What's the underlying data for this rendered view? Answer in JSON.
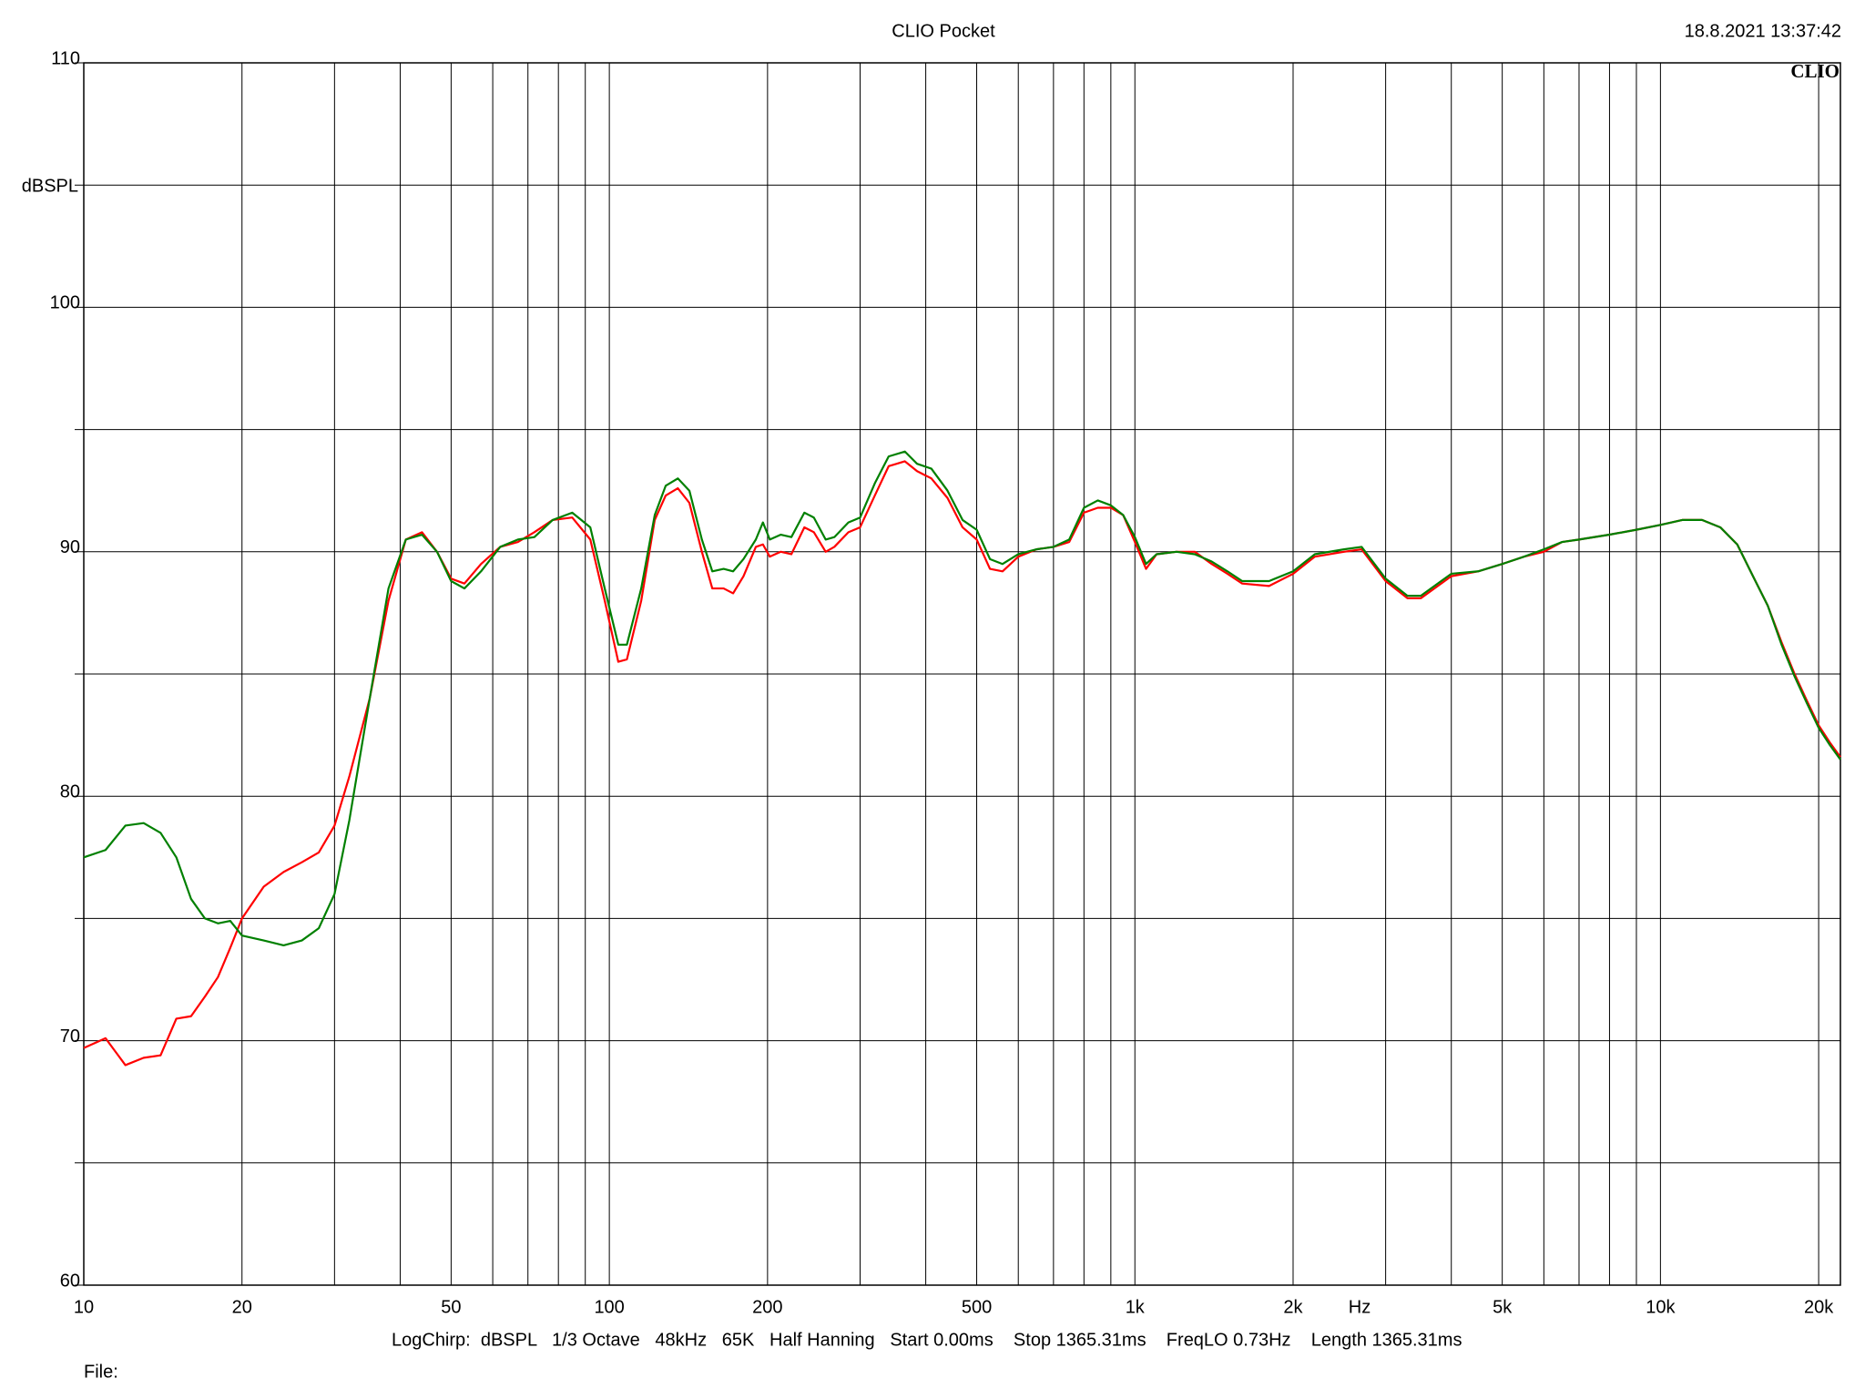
{
  "chart_data": {
    "type": "line",
    "title": "CLIO Pocket",
    "timestamp": "18.8.2021 13:37:42",
    "logo": "CLIO",
    "y_label": "dBSPL",
    "x_label": "Hz",
    "footer": "LogChirp:  dBSPL   1/3 Octave   48kHz   65K   Half Hanning   Start 0.00ms    Stop 1365.31ms    FreqLO 0.73Hz    Length 1365.31ms",
    "file_label": "File:",
    "xscale": "log",
    "grid": true,
    "xlim": [
      10,
      22000
    ],
    "ylim": [
      60,
      110
    ],
    "xticks": [
      10,
      20,
      50,
      100,
      200,
      500,
      {
        "value": 1000,
        "label": "1k"
      },
      {
        "value": 2000,
        "label": "2k"
      },
      {
        "value": 5000,
        "label": "5k"
      },
      {
        "value": 10000,
        "label": "10k"
      },
      {
        "value": 20000,
        "label": "20k"
      }
    ],
    "xminor": [
      30,
      40,
      60,
      70,
      80,
      90,
      300,
      400,
      600,
      700,
      800,
      900,
      3000,
      4000,
      6000,
      7000,
      8000,
      9000
    ],
    "yticks": [
      60,
      70,
      80,
      90,
      100,
      110
    ],
    "yminor": [
      65,
      75,
      85,
      95,
      105
    ],
    "x": [
      10,
      11,
      12,
      13,
      14,
      15,
      16,
      17,
      18,
      19,
      20,
      22,
      24,
      26,
      28,
      30,
      32,
      35,
      38,
      41,
      44,
      47,
      50,
      53,
      57,
      62,
      67,
      72,
      78,
      85,
      92,
      98,
      104,
      108,
      115,
      122,
      128,
      135,
      142,
      150,
      157,
      165,
      172,
      180,
      190,
      196,
      202,
      212,
      222,
      235,
      245,
      258,
      268,
      285,
      300,
      320,
      340,
      365,
      385,
      410,
      440,
      470,
      500,
      530,
      560,
      600,
      650,
      700,
      750,
      800,
      850,
      900,
      950,
      1000,
      1050,
      1100,
      1200,
      1300,
      1400,
      1500,
      1600,
      1800,
      2000,
      2200,
      2500,
      2700,
      3000,
      3300,
      3500,
      4000,
      4500,
      5000,
      5500,
      6000,
      6500,
      7000,
      8000,
      9000,
      10000,
      11000,
      12000,
      13000,
      14000,
      15000,
      16000,
      17000,
      18000,
      19000,
      20000,
      21000,
      22000
    ],
    "series": [
      {
        "color": "#ff0000",
        "values": [
          69.7,
          70.1,
          69,
          69.3,
          69.4,
          70.9,
          71,
          71.8,
          72.6,
          73.8,
          75,
          76.3,
          76.9,
          77.3,
          77.7,
          78.8,
          80.8,
          84,
          88,
          90.5,
          90.8,
          90,
          88.9,
          88.7,
          89.5,
          90.2,
          90.4,
          90.8,
          91.3,
          91.4,
          90.5,
          88,
          85.5,
          85.6,
          88,
          91.3,
          92.3,
          92.6,
          92,
          90,
          88.5,
          88.5,
          88.3,
          89,
          90.2,
          90.3,
          89.8,
          90,
          89.9,
          91,
          90.8,
          90,
          90.2,
          90.8,
          91,
          92.3,
          93.5,
          93.7,
          93.3,
          93,
          92.2,
          91,
          90.5,
          89.3,
          89.2,
          89.8,
          90.1,
          90.2,
          90.4,
          91.6,
          91.8,
          91.8,
          91.5,
          90.4,
          89.3,
          89.9,
          90,
          90,
          89.5,
          89.1,
          88.7,
          88.6,
          89.1,
          89.8,
          90,
          90.1,
          88.8,
          88.1,
          88.1,
          89,
          89.2,
          89.5,
          89.8,
          90,
          90.4,
          90.5,
          90.7,
          90.9,
          91.1,
          91.3,
          91.3,
          91,
          90.3,
          89,
          87.8,
          86.3,
          85,
          83.9,
          82.9,
          82.2,
          81.6
        ]
      },
      {
        "color": "#008000",
        "values": [
          77.5,
          77.8,
          78.8,
          78.9,
          78.5,
          77.5,
          75.8,
          75,
          74.8,
          74.9,
          74.3,
          74.1,
          73.9,
          74.1,
          74.6,
          76,
          79,
          84,
          88.5,
          90.5,
          90.7,
          90,
          88.8,
          88.5,
          89.2,
          90.2,
          90.5,
          90.6,
          91.3,
          91.6,
          91,
          88.5,
          86.2,
          86.2,
          88.5,
          91.5,
          92.7,
          93,
          92.5,
          90.5,
          89.2,
          89.3,
          89.2,
          89.7,
          90.5,
          91.2,
          90.5,
          90.7,
          90.6,
          91.6,
          91.4,
          90.5,
          90.6,
          91.2,
          91.4,
          92.8,
          93.9,
          94.1,
          93.6,
          93.4,
          92.5,
          91.3,
          90.9,
          89.7,
          89.5,
          89.9,
          90.1,
          90.2,
          90.5,
          91.8,
          92.1,
          91.9,
          91.5,
          90.6,
          89.5,
          89.9,
          90,
          89.9,
          89.6,
          89.2,
          88.8,
          88.8,
          89.2,
          89.9,
          90.1,
          90.2,
          88.9,
          88.2,
          88.2,
          89.1,
          89.2,
          89.5,
          89.8,
          90.1,
          90.4,
          90.5,
          90.7,
          90.9,
          91.1,
          91.3,
          91.3,
          91,
          90.3,
          89,
          87.8,
          86.2,
          84.9,
          83.8,
          82.8,
          82.1,
          81.5
        ]
      }
    ]
  }
}
